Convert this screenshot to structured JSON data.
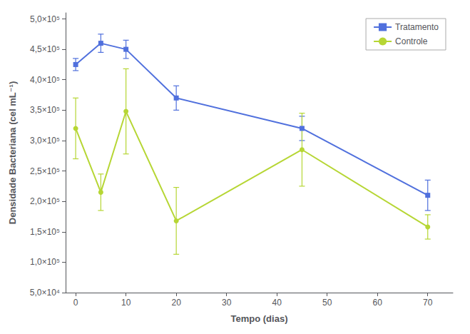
{
  "chart_data": {
    "type": "line",
    "xlabel": "Tempo (dias)",
    "ylabel": "Densidade Bacteriana (cel mL⁻¹)",
    "x": [
      0,
      5,
      10,
      20,
      45,
      70
    ],
    "series": [
      {
        "name": "Tratamento",
        "marker": "square",
        "values": [
          425000,
          460000,
          450000,
          370000,
          320000,
          210000
        ],
        "errors": [
          10000,
          15000,
          15000,
          20000,
          20000,
          25000
        ]
      },
      {
        "name": "Controle",
        "marker": "circle",
        "values": [
          320000,
          215000,
          348000,
          168000,
          285000,
          158000
        ],
        "errors": [
          50000,
          30000,
          70000,
          55000,
          60000,
          20000
        ]
      }
    ],
    "xlim": [
      -2,
      75
    ],
    "xticks": [
      0,
      10,
      20,
      30,
      40,
      50,
      60,
      70
    ],
    "ylim": [
      50000,
      510000
    ],
    "yticks": [
      {
        "value": 50000,
        "label": "5,0×10⁴"
      },
      {
        "value": 100000,
        "label": "1,0×10⁵"
      },
      {
        "value": 150000,
        "label": "1,5×10⁵"
      },
      {
        "value": 200000,
        "label": "2,0×10⁵"
      },
      {
        "value": 250000,
        "label": "2,5×10⁵"
      },
      {
        "value": 300000,
        "label": "3,0×10⁵"
      },
      {
        "value": 350000,
        "label": "3,5×10⁵"
      },
      {
        "value": 400000,
        "label": "4,0×10⁵"
      },
      {
        "value": 450000,
        "label": "4,5×10⁵"
      },
      {
        "value": 500000,
        "label": "5,0×10⁵"
      }
    ],
    "grid": false,
    "legend": "upper right"
  }
}
